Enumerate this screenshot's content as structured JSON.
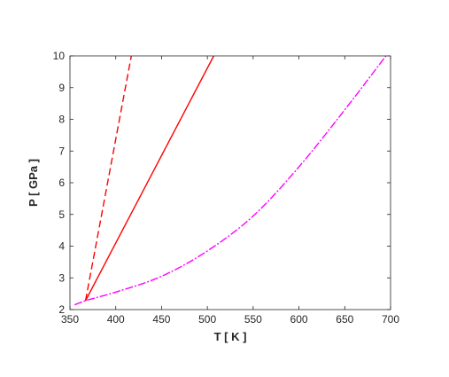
{
  "chart_data": {
    "type": "line",
    "xlabel": "T [ K ]",
    "ylabel": "P [ GPa ]",
    "xlim": [
      350,
      700
    ],
    "ylim": [
      2,
      10
    ],
    "xticks": [
      350,
      400,
      450,
      500,
      550,
      600,
      650,
      700
    ],
    "yticks": [
      2,
      3,
      4,
      5,
      6,
      7,
      8,
      9,
      10
    ],
    "grid": false,
    "legend": "none",
    "series": [
      {
        "color": "#ff0000",
        "style": "dashed",
        "x": [
          367,
          417
        ],
        "y": [
          2.28,
          10.0
        ]
      },
      {
        "color": "#ff0000",
        "style": "solid",
        "x": [
          367,
          507
        ],
        "y": [
          2.28,
          10.0
        ]
      },
      {
        "color": "#ff00ff",
        "style": "dash-dot",
        "x": [
          355,
          367,
          400,
          450,
          500,
          550,
          600,
          650,
          695
        ],
        "y": [
          2.15,
          2.28,
          2.55,
          3.05,
          3.85,
          4.95,
          6.5,
          8.3,
          10.0
        ]
      }
    ]
  }
}
